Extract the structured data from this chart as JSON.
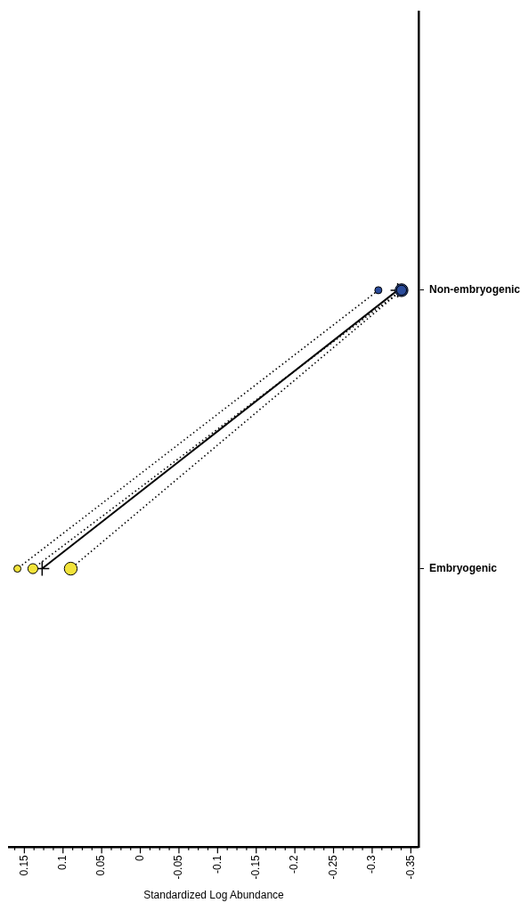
{
  "chart_data": {
    "type": "line",
    "orientation": "horizontal",
    "xlabel": "Standardized Log Abundance",
    "categories": [
      "Non-embryogenic",
      "Embryogenic"
    ],
    "xlim": [
      0.17,
      -0.36
    ],
    "xticks": [
      {
        "value": 0.1625,
        "label": null
      },
      0.15,
      {
        "value": 0.1375,
        "label": null
      },
      {
        "value": 0.125,
        "label": null
      },
      {
        "value": 0.1125,
        "label": null
      },
      0.1,
      {
        "value": 0.0875,
        "label": null
      },
      {
        "value": 0.075,
        "label": null
      },
      {
        "value": 0.0625,
        "label": null
      },
      0.05,
      {
        "value": 0.0375,
        "label": null
      },
      {
        "value": 0.025,
        "label": null
      },
      {
        "value": 0.0125,
        "label": null
      },
      0,
      {
        "value": -0.0125,
        "label": null
      },
      {
        "value": -0.025,
        "label": null
      },
      {
        "value": -0.0375,
        "label": null
      },
      -0.05,
      {
        "value": -0.0625,
        "label": null
      },
      {
        "value": -0.075,
        "label": null
      },
      {
        "value": -0.0875,
        "label": null
      },
      -0.1,
      {
        "value": -0.1125,
        "label": null
      },
      {
        "value": -0.125,
        "label": null
      },
      {
        "value": -0.1375,
        "label": null
      },
      -0.15,
      {
        "value": -0.1625,
        "label": null
      },
      {
        "value": -0.175,
        "label": null
      },
      {
        "value": -0.1875,
        "label": null
      },
      -0.2,
      {
        "value": -0.2125,
        "label": null
      },
      {
        "value": -0.225,
        "label": null
      },
      {
        "value": -0.2375,
        "label": null
      },
      -0.25,
      {
        "value": -0.2625,
        "label": null
      },
      {
        "value": -0.275,
        "label": null
      },
      {
        "value": -0.2875,
        "label": null
      },
      -0.3,
      {
        "value": -0.3125,
        "label": null
      },
      {
        "value": -0.325,
        "label": null
      },
      {
        "value": -0.3375,
        "label": null
      },
      -0.35
    ],
    "grid": false,
    "legend": false,
    "series": [
      {
        "color": "#000000",
        "colors": [
          "#2b4c9b",
          "#f2e33a"
        ],
        "values": [
          -0.308,
          0.159
        ],
        "marker": "circle",
        "line_style": "dotted"
      },
      {
        "color": "#000000",
        "colors": [
          "#2b4c9b",
          "#f2e33a"
        ],
        "values": [
          -0.338,
          0.139
        ],
        "marker": "circle",
        "line_style": "dotted"
      },
      {
        "color": "#000000",
        "colors": [
          "#2b4c9b",
          "#f2e33a"
        ],
        "values": [
          -0.338,
          0.09
        ],
        "marker": "circle",
        "line_style": "dotted"
      },
      {
        "color": "#000000",
        "colors": [
          "#000000",
          "#000000"
        ],
        "values": [
          -0.333,
          0.127
        ],
        "marker": "cross",
        "line_style": "solid"
      }
    ]
  }
}
